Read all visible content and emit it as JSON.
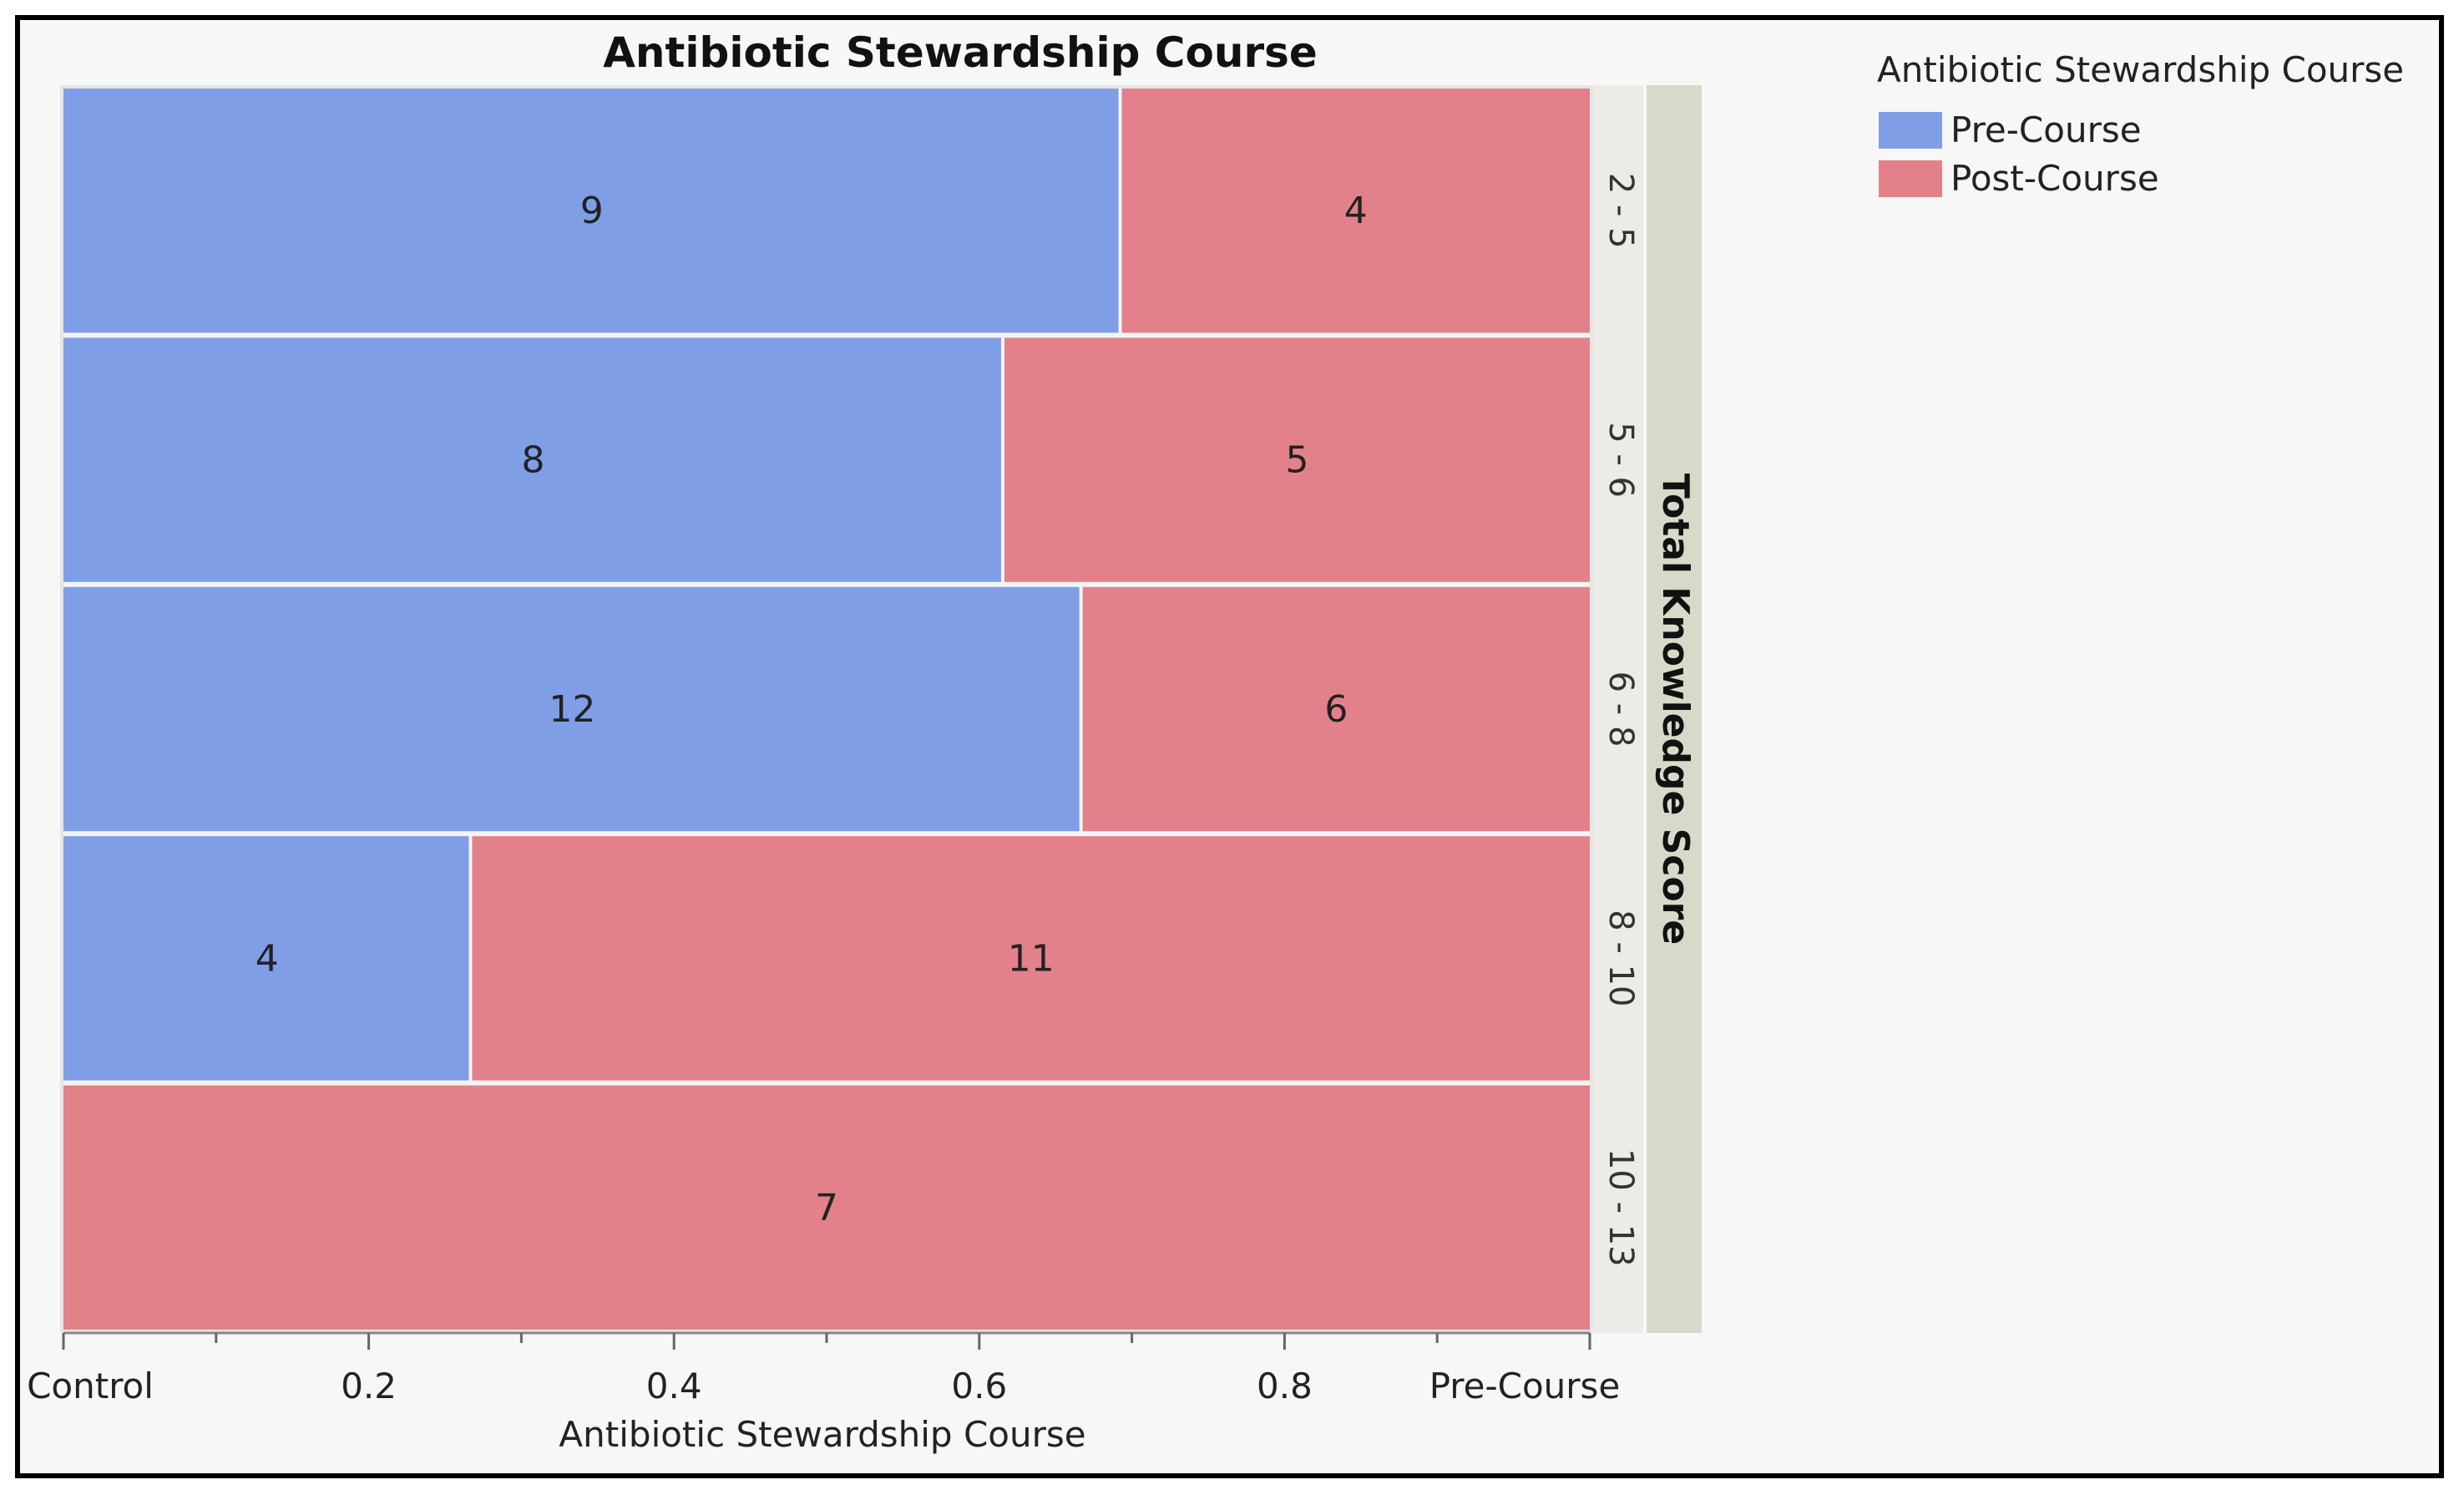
{
  "chart_data": {
    "type": "mosaic",
    "title": "Antibiotic Stewardship Course",
    "xlabel": "Antibiotic Stewardship Course",
    "ylabel": "Total Knowledge Score",
    "xlim": [
      0,
      1
    ],
    "x_tick_labels": [
      "Control",
      "0.2",
      "0.4",
      "0.6",
      "0.8",
      "Pre-Course"
    ],
    "legend": {
      "title": "Antibiotic Stewardship Course",
      "position": "top-right",
      "items": [
        {
          "label": "Pre-Course",
          "color": "#7f9ee6"
        },
        {
          "label": "Post-Course",
          "color": "#e3818a"
        }
      ]
    },
    "rows": [
      {
        "label": "2 - 5",
        "pre": 9,
        "post": 4
      },
      {
        "label": "5 - 6",
        "pre": 8,
        "post": 5
      },
      {
        "label": "6 - 8",
        "pre": 12,
        "post": 6
      },
      {
        "label": "8 - 10",
        "pre": 4,
        "post": 11
      },
      {
        "label": "10 - 13",
        "pre": 0,
        "post": 7
      }
    ]
  }
}
